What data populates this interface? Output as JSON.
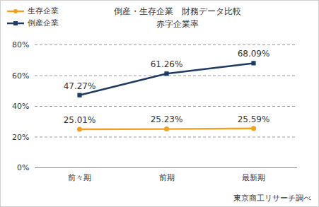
{
  "chart_data": {
    "type": "line",
    "title": "倒産・生存企業　財務データ比較",
    "subtitle": "赤字企業率",
    "source": "東京商工リサーチ調べ",
    "categories": [
      "前々期",
      "前期",
      "最新期"
    ],
    "series": [
      {
        "name": "生存企業",
        "color": "#f2a01e",
        "marker": "circle",
        "values": [
          25.01,
          25.23,
          25.59
        ],
        "value_labels": [
          "25.01%",
          "25.23%",
          "25.59%"
        ]
      },
      {
        "name": "倒産企業",
        "color": "#1f3b63",
        "marker": "square",
        "values": [
          47.27,
          61.26,
          68.09
        ],
        "value_labels": [
          "47.27%",
          "61.26%",
          "68.09%"
        ]
      }
    ],
    "ylim": [
      0,
      80
    ],
    "yticks": [
      {
        "value": 0,
        "label": "0%"
      },
      {
        "value": 20,
        "label": "20%"
      },
      {
        "value": 40,
        "label": "40%"
      },
      {
        "value": 60,
        "label": "60%"
      },
      {
        "value": 80,
        "label": "80%"
      }
    ],
    "grid": true,
    "data_labels": true,
    "legend": "top-left"
  }
}
